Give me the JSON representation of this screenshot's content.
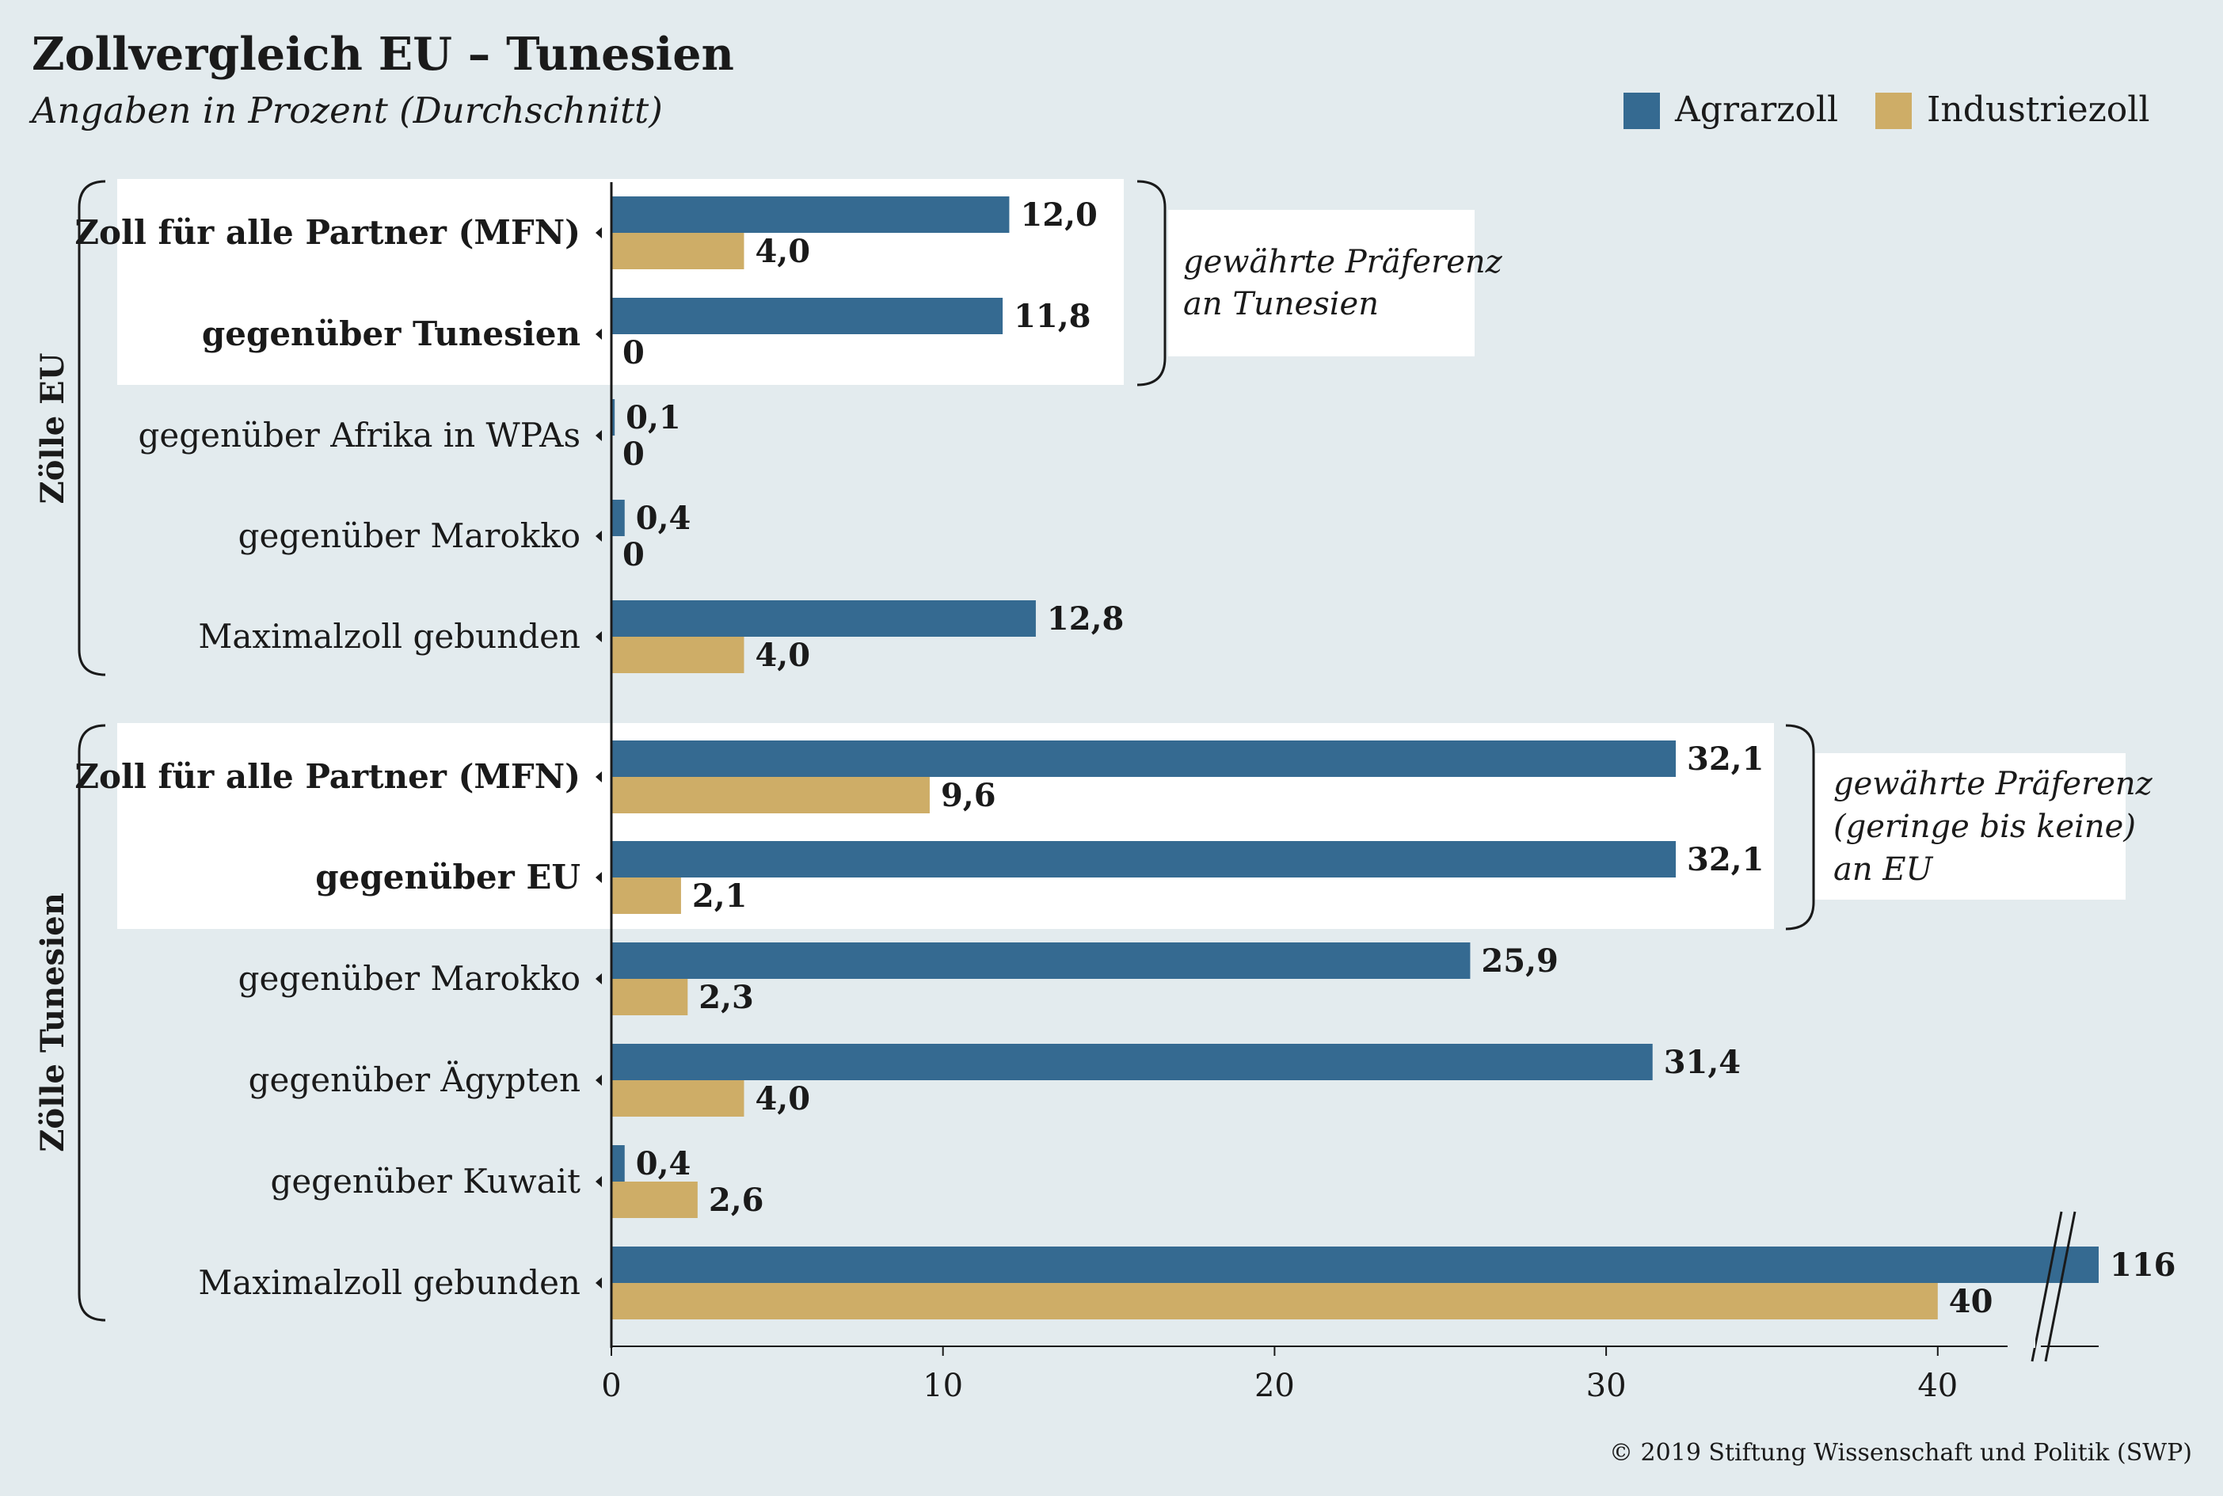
{
  "title": "Zollvergleich EU – Tunesien",
  "subtitle": "Angaben in Prozent (Durchschnitt)",
  "copyright": "© 2019 Stiftung Wissenschaft und Politik (SWP)",
  "colors": {
    "agrar": "#356a91",
    "industrie": "#cead67",
    "background": "#e3ebee",
    "highlight": "#ffffff"
  },
  "chart_data": {
    "type": "bar",
    "orientation": "horizontal",
    "xlim": [
      0,
      45
    ],
    "xticks": [
      "0",
      "10",
      "20",
      "30",
      "40"
    ],
    "axis_break": true,
    "legend_position": "top-right",
    "series": [
      {
        "name": "Agrarzoll",
        "key": "agrar"
      },
      {
        "name": "Industriezoll",
        "key": "industrie"
      }
    ],
    "groups": [
      {
        "label": "Zölle EU",
        "note": [
          "gewährte Präferenz",
          "an Tunesien"
        ],
        "rows": [
          {
            "label": "Zoll für alle Partner (MFN)",
            "bold": true,
            "agrar": 12.0,
            "agrar_label": "12,0",
            "industrie": 4.0,
            "industrie_label": "4,0"
          },
          {
            "label": "gegenüber Tunesien",
            "bold": true,
            "agrar": 11.8,
            "agrar_label": "11,8",
            "industrie": 0,
            "industrie_label": "0"
          },
          {
            "label": "gegenüber Afrika in WPAs",
            "bold": false,
            "agrar": 0.1,
            "agrar_label": "0,1",
            "industrie": 0,
            "industrie_label": "0"
          },
          {
            "label": "gegenüber Marokko",
            "bold": false,
            "agrar": 0.4,
            "agrar_label": "0,4",
            "industrie": 0,
            "industrie_label": "0"
          },
          {
            "label": "Maximalzoll gebunden",
            "bold": false,
            "agrar": 12.8,
            "agrar_label": "12,8",
            "industrie": 4.0,
            "industrie_label": "4,0"
          }
        ]
      },
      {
        "label": "Zölle Tunesien",
        "note": [
          "gewährte Präferenz",
          "(geringe bis keine)",
          "an EU"
        ],
        "rows": [
          {
            "label": "Zoll für alle Partner (MFN)",
            "bold": true,
            "agrar": 32.1,
            "agrar_label": "32,1",
            "industrie": 9.6,
            "industrie_label": "9,6"
          },
          {
            "label": "gegenüber EU",
            "bold": true,
            "agrar": 32.1,
            "agrar_label": "32,1",
            "industrie": 2.1,
            "industrie_label": "2,1"
          },
          {
            "label": "gegenüber Marokko",
            "bold": false,
            "agrar": 25.9,
            "agrar_label": "25,9",
            "industrie": 2.3,
            "industrie_label": "2,3"
          },
          {
            "label": "gegenüber Ägypten",
            "bold": false,
            "agrar": 31.4,
            "agrar_label": "31,4",
            "industrie": 4.0,
            "industrie_label": "4,0"
          },
          {
            "label": "gegenüber Kuwait",
            "bold": false,
            "agrar": 0.4,
            "agrar_label": "0,4",
            "industrie": 2.6,
            "industrie_label": "2,6"
          },
          {
            "label": "Maximalzoll gebunden",
            "bold": false,
            "agrar": 116,
            "agrar_label": "116",
            "industrie": 40,
            "industrie_label": "40",
            "broken": true
          }
        ]
      }
    ]
  }
}
